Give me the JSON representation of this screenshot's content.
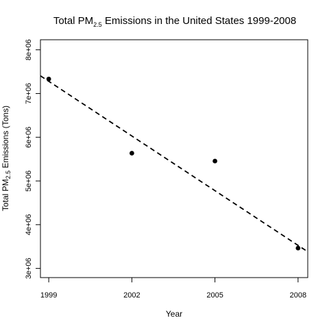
{
  "chart_data": {
    "type": "scatter",
    "title": {
      "prefix": "Total PM",
      "subscript": "2.5",
      "suffix": " Emissions in the United States 1999-2008"
    },
    "xlabel": "Year",
    "ylabel": {
      "prefix": "Total PM",
      "subscript": "2.5",
      "suffix": " Emissions (Tons)"
    },
    "x_ticks": [
      1999,
      2002,
      2005,
      2008
    ],
    "y_ticks": [
      3000000,
      4000000,
      5000000,
      6000000,
      7000000,
      8000000
    ],
    "y_tick_labels": [
      "3e+06",
      "4e+06",
      "5e+06",
      "6e+06",
      "7e+06",
      "8e+06"
    ],
    "xlim": [
      1998.7,
      2008.35
    ],
    "ylim": [
      2790000,
      8230000
    ],
    "points": [
      {
        "x": 1999,
        "y": 7332967
      },
      {
        "x": 2002,
        "y": 5635780
      },
      {
        "x": 2005,
        "y": 5454703
      },
      {
        "x": 2008,
        "y": 3464206
      }
    ],
    "trend_line": {
      "style": "dashed",
      "intercept_at_1999": 7280000,
      "slope_per_year": -417000
    },
    "grid": false,
    "legend": "none",
    "colors": {
      "points": "#000000",
      "line": "#000000",
      "axes": "#000000"
    }
  }
}
